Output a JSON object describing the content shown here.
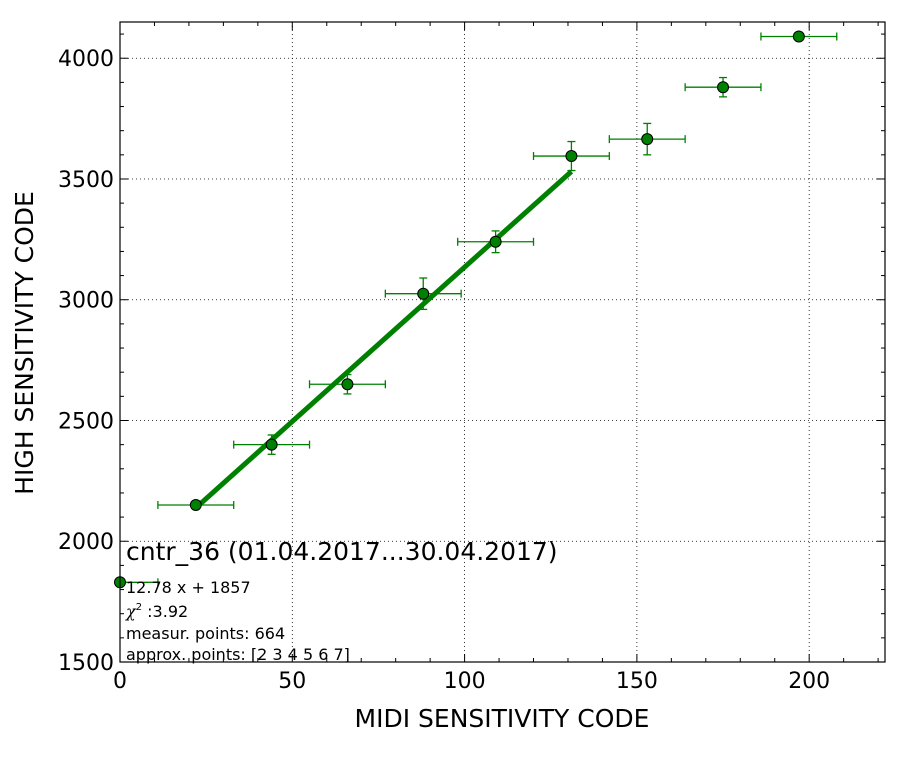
{
  "chart_data": {
    "type": "scatter",
    "title": "cntr_36 (01.04.2017...30.04.2017)",
    "xlabel": "MIDI SENSITIVITY CODE",
    "ylabel": "HIGH SENSITIVITY CODE",
    "xlim": [
      0,
      222
    ],
    "ylim": [
      1500,
      4150
    ],
    "x_ticks": [
      "0",
      "50",
      "100",
      "150",
      "200"
    ],
    "y_ticks": [
      "1500",
      "2000",
      "2500",
      "3000",
      "3500",
      "4000"
    ],
    "x_tick_values": [
      0,
      50,
      100,
      150,
      200
    ],
    "y_tick_values": [
      1500,
      2000,
      2500,
      3000,
      3500,
      4000
    ],
    "grid": true,
    "color": "#008000",
    "series": [
      {
        "type": "errorbar-points",
        "points": [
          {
            "x": 0,
            "y": 1830,
            "xerr": 11,
            "yerr": 0
          },
          {
            "x": 22,
            "y": 2150,
            "xerr": 11,
            "yerr": 10
          },
          {
            "x": 44,
            "y": 2400,
            "xerr": 11,
            "yerr": 40
          },
          {
            "x": 66,
            "y": 2650,
            "xerr": 11,
            "yerr": 40
          },
          {
            "x": 88,
            "y": 3025,
            "xerr": 11,
            "yerr": 65
          },
          {
            "x": 109,
            "y": 3240,
            "xerr": 11,
            "yerr": 45
          },
          {
            "x": 131,
            "y": 3595,
            "xerr": 11,
            "yerr": 60
          },
          {
            "x": 153,
            "y": 3665,
            "xerr": 11,
            "yerr": 65
          },
          {
            "x": 175,
            "y": 3880,
            "xerr": 11,
            "yerr": 40
          },
          {
            "x": 197,
            "y": 4090,
            "xerr": 11,
            "yerr": 10
          }
        ]
      },
      {
        "type": "fit-line",
        "slope": 12.78,
        "intercept": 1857,
        "x_range": [
          22,
          131
        ]
      }
    ],
    "annotations": {
      "fit_equation": "12.78 x + 1857",
      "chi2_label": "χ",
      "chi2_sup": "2",
      "chi2_value": " :3.92",
      "measur_points": "measur. points: 664",
      "approx_points": "approx. points: [2 3 4 5 6 7]"
    }
  }
}
